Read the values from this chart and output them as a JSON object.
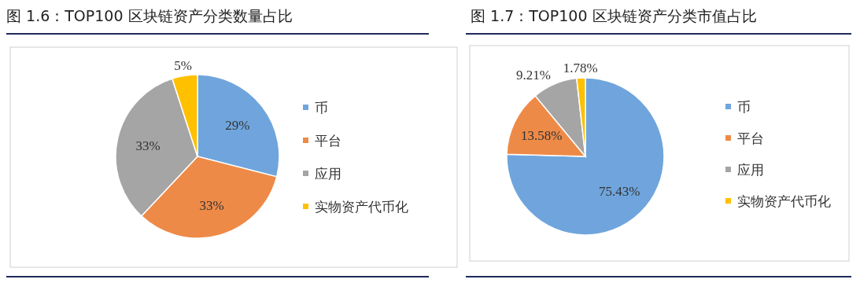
{
  "chart_data": [
    {
      "type": "pie",
      "title": "图 1.6：TOP100 区块链资产分类数量占比",
      "categories": [
        "币",
        "平台",
        "应用",
        "实物资产代币化"
      ],
      "values": [
        29,
        33,
        33,
        5
      ],
      "colors": [
        "#6fa5dc",
        "#ee8a47",
        "#a5a5a5",
        "#ffc000"
      ],
      "value_labels": [
        "29%",
        "33%",
        "33%",
        "5%"
      ],
      "legend": "right"
    },
    {
      "type": "pie",
      "title": "图 1.7：TOP100 区块链资产分类市值占比",
      "categories": [
        "币",
        "平台",
        "应用",
        "实物资产代币化"
      ],
      "values": [
        75.43,
        13.58,
        9.21,
        1.78
      ],
      "colors": [
        "#6fa5dc",
        "#ee8a47",
        "#a5a5a5",
        "#ffc000"
      ],
      "value_labels": [
        "75.43%",
        "13.58%",
        "9.21%",
        "1.78%"
      ],
      "legend": "right"
    }
  ]
}
